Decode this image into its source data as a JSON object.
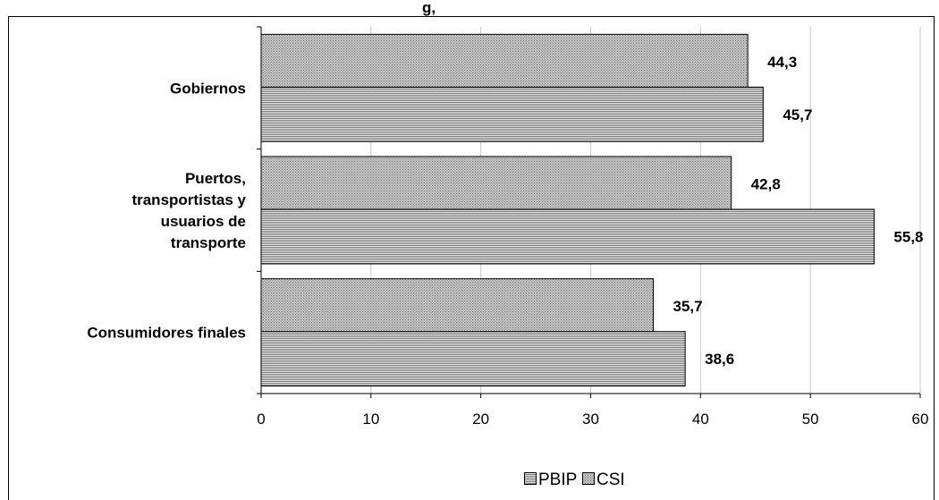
{
  "title_fragment": "g,",
  "chart_data": {
    "type": "bar",
    "orientation": "horizontal",
    "categories": [
      "Gobiernos",
      "Puertos, transportistas y usuarios de transporte",
      "Consumidores finales"
    ],
    "category_lines": [
      [
        "Gobiernos"
      ],
      [
        "Puertos,",
        "transportistas y",
        "usuarios de",
        "transporte"
      ],
      [
        "Consumidores finales"
      ]
    ],
    "series": [
      {
        "name": "PBIP",
        "values": [
          45.7,
          55.8,
          38.6
        ],
        "value_labels": [
          "45,7",
          "55,8",
          "38,6"
        ],
        "pattern": "horizontal-lines"
      },
      {
        "name": "CSI",
        "values": [
          44.3,
          42.8,
          35.7
        ],
        "value_labels": [
          "44,3",
          "42,8",
          "35,7"
        ],
        "pattern": "dotted"
      }
    ],
    "xlim": [
      0,
      60
    ],
    "xticks": [
      0,
      10,
      20,
      30,
      40,
      50,
      60
    ],
    "xtick_labels": [
      "0",
      "10",
      "20",
      "30",
      "40",
      "50",
      "60"
    ],
    "grid": "vertical",
    "legend": "bottom-center",
    "legend_entries": [
      "PBIP",
      "CSI"
    ]
  }
}
